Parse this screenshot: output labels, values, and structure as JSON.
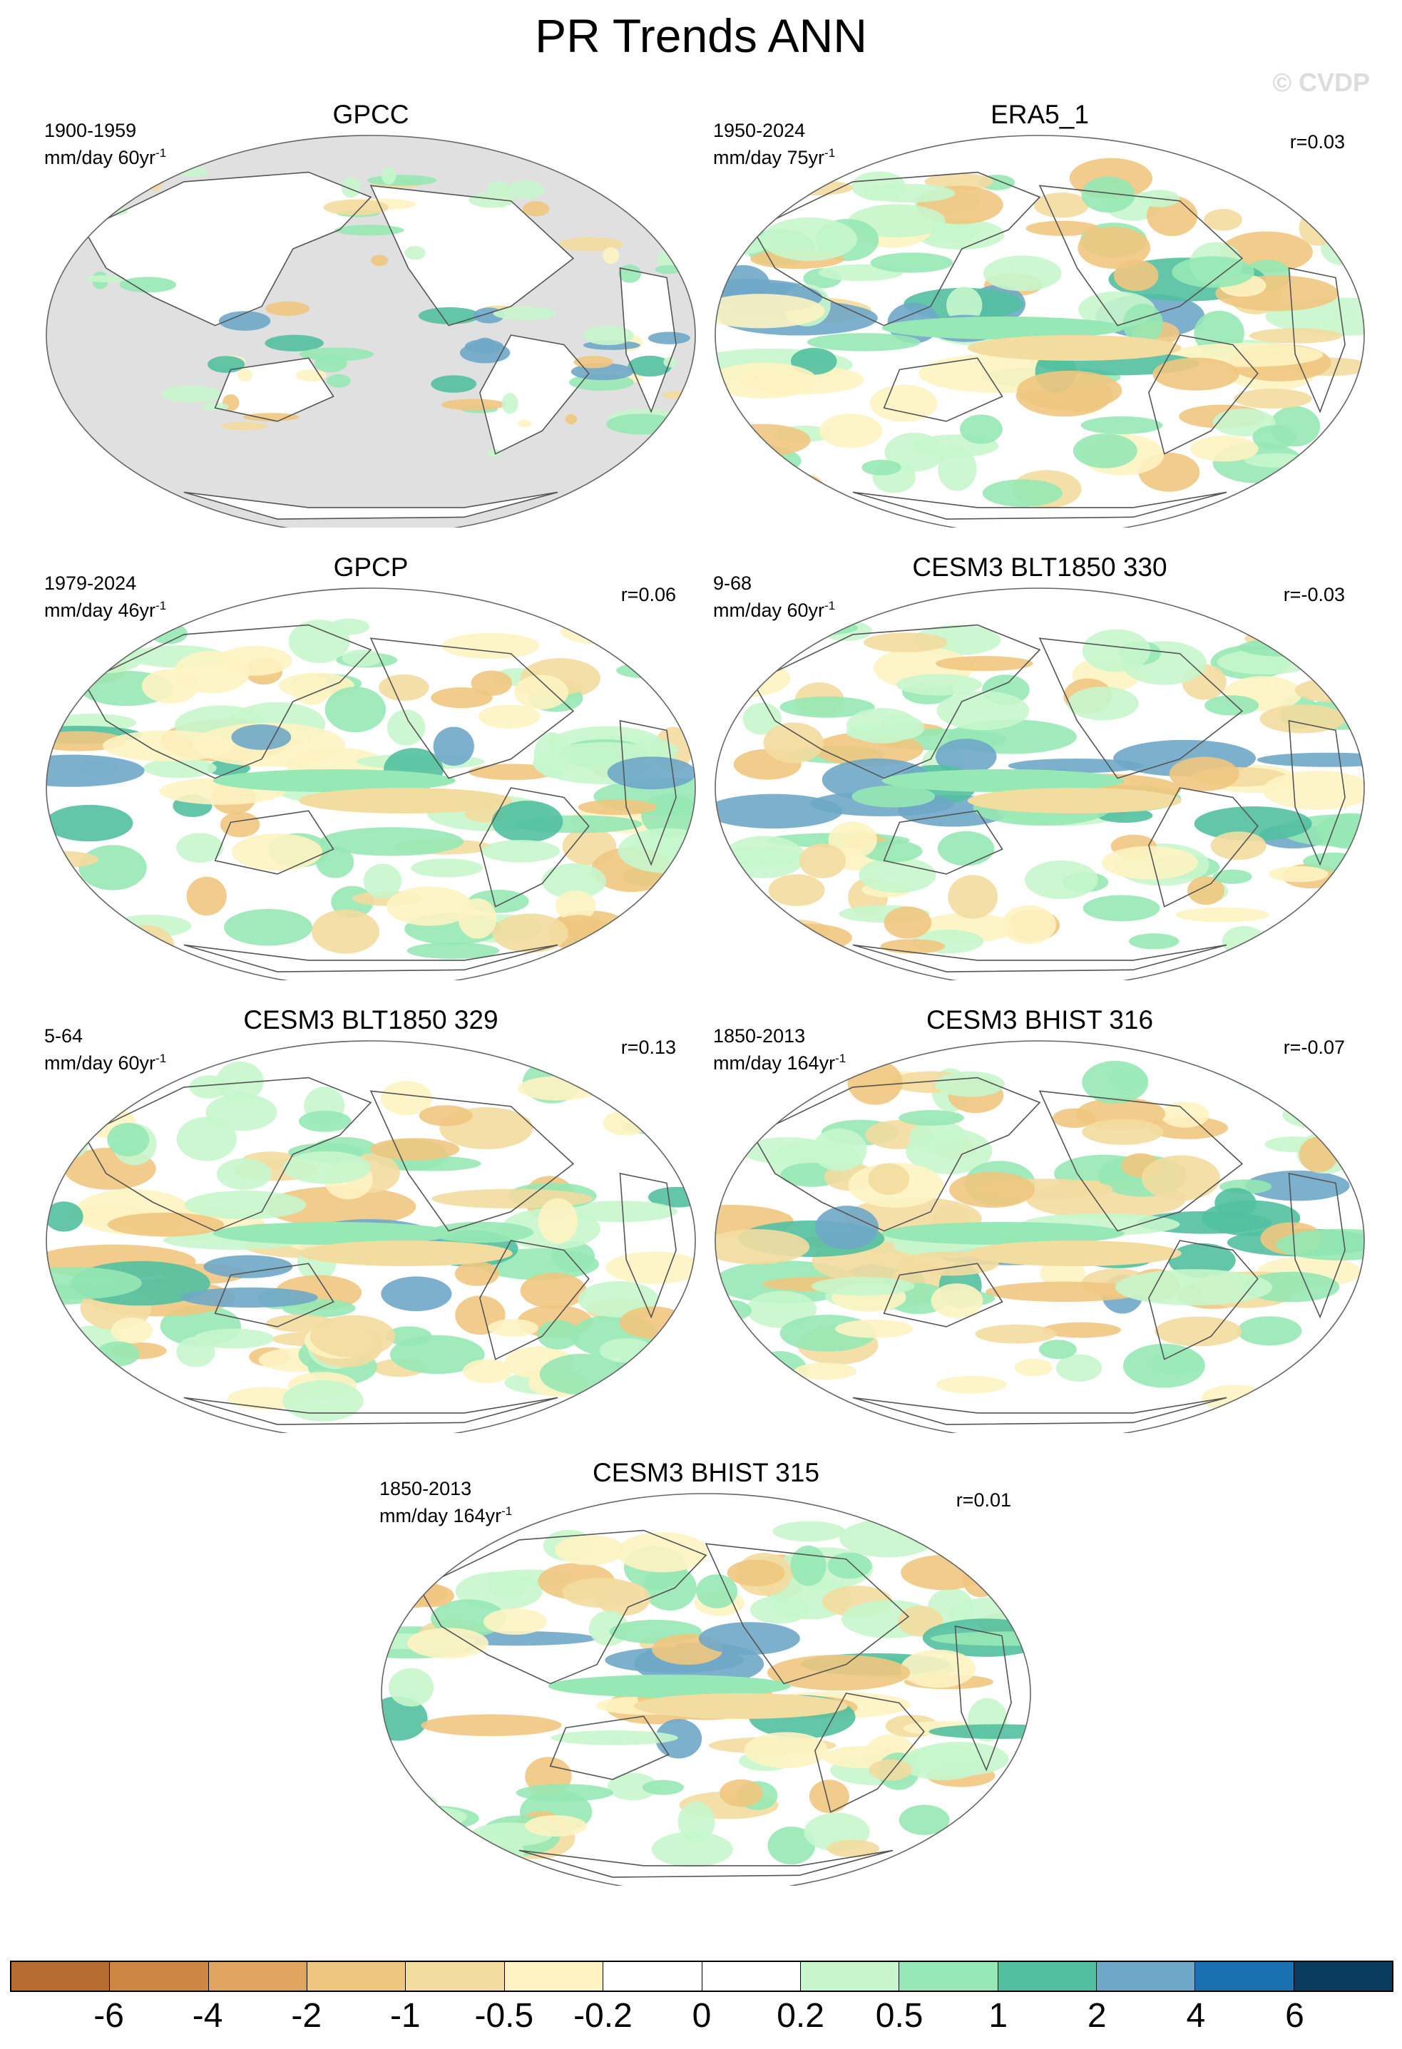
{
  "title": "PR Trends ANN",
  "watermark": "© CVDP",
  "panels": [
    {
      "title": "GPCC",
      "period": "1900-1959",
      "units": "mm/day 60yr",
      "exp": "-1",
      "r": "",
      "land_only": true
    },
    {
      "title": "ERA5_1",
      "period": "1950-2024",
      "units": "mm/day 75yr",
      "exp": "-1",
      "r": "r=0.03",
      "land_only": false
    },
    {
      "title": "GPCP",
      "period": "1979-2024",
      "units": "mm/day 46yr",
      "exp": "-1",
      "r": "r=0.06",
      "land_only": false
    },
    {
      "title": "CESM3 BLT1850 330",
      "period": "9-68",
      "units": "mm/day 60yr",
      "exp": "-1",
      "r": "r=-0.03",
      "land_only": false
    },
    {
      "title": "CESM3 BLT1850 329",
      "period": "5-64",
      "units": "mm/day 60yr",
      "exp": "-1",
      "r": "r=0.13",
      "land_only": false
    },
    {
      "title": "CESM3 BHIST 316",
      "period": "1850-2013",
      "units": "mm/day 164yr",
      "exp": "-1",
      "r": "r=-0.07",
      "land_only": false
    },
    {
      "title": "CESM3 BHIST 315",
      "period": "1850-2013",
      "units": "mm/day 164yr",
      "exp": "-1",
      "r": "r=0.01",
      "land_only": false
    }
  ],
  "colorbar": {
    "colors": [
      "#b86b2f",
      "#cd8742",
      "#dea460",
      "#efc680",
      "#f3dca0",
      "#fdf3c2",
      "#ffffff",
      "#ffffff",
      "#c7f6cc",
      "#96e8b4",
      "#52c0a0",
      "#6fa7c8",
      "#1a70b0",
      "#0a3b5e"
    ],
    "labels": [
      "-6",
      "-4",
      "-2",
      "-1",
      "-0.5",
      "-0.2",
      "0",
      "0.2",
      "0.5",
      "1",
      "2",
      "4",
      "6"
    ]
  }
}
